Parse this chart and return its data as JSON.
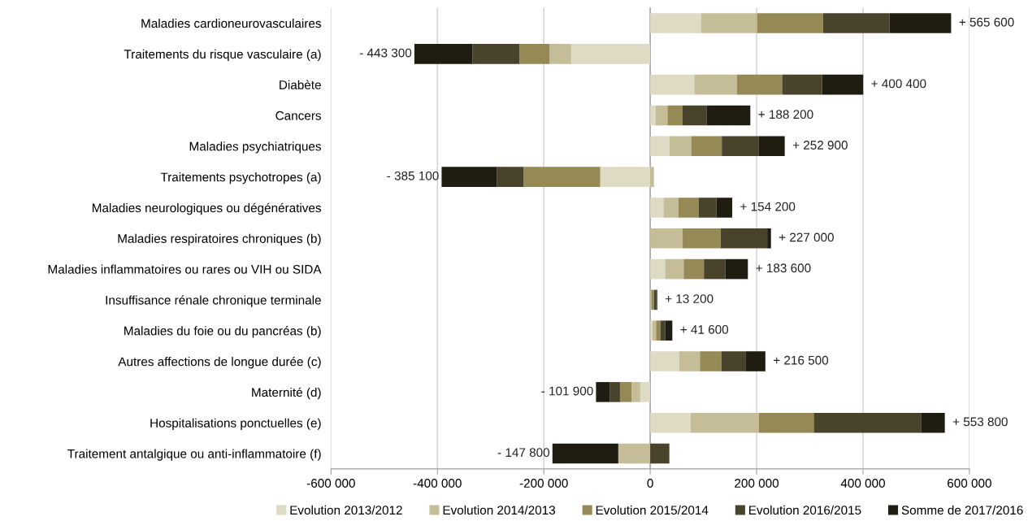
{
  "chart_data": {
    "type": "bar",
    "orientation": "horizontal",
    "stacked": true,
    "categories": [
      "Maladies cardioneurovasculaires",
      "Traitements du risque vasculaire (a)",
      "Diabète",
      "Cancers",
      "Maladies psychiatriques",
      "Traitements psychotropes (a)",
      "Maladies neurologiques ou dégénératives",
      "Maladies respiratoires chroniques (b)",
      "Maladies inflammatoires ou rares ou VIH ou SIDA",
      "Insuffisance rénale chronique terminale",
      "Maladies du foie ou du pancréas (b)",
      "Autres affections de longue durée (c)",
      "Maternité (d)",
      "Hospitalisations ponctuelles (e)",
      "Traitement antalgique ou anti-inflammatoire (f)"
    ],
    "series": [
      {
        "name": "Evolution 2013/2012",
        "color": "#dedac3",
        "values": [
          96000,
          -148600,
          83000,
          10000,
          36500,
          -94000,
          25000,
          0,
          28000,
          null,
          4000,
          54500,
          -18700,
          76000,
          0
        ]
      },
      {
        "name": "Evolution 2014/2013",
        "color": "#c5bd97",
        "values": [
          105000,
          -40500,
          80000,
          22500,
          40500,
          7000,
          28000,
          61000,
          35000,
          2000,
          7000,
          39000,
          -16300,
          128500,
          -60000
        ]
      },
      {
        "name": "Evolution 2015/2014",
        "color": "#958a55",
        "values": [
          124000,
          -56800,
          85000,
          28000,
          57500,
          -144000,
          38000,
          71500,
          38000,
          5000,
          8000,
          40500,
          -21800,
          103000,
          0
        ]
      },
      {
        "name": "Evolution 2016/2015",
        "color": "#4a432c",
        "values": [
          125000,
          -88000,
          75000,
          46000,
          69000,
          -50000,
          33500,
          87500,
          40500,
          4200,
          9000,
          46000,
          -19500,
          201500,
          36000
        ]
      },
      {
        "name": "Somme de 2017/2016",
        "color": "#1f1d12",
        "values": [
          115600,
          -109400,
          77400,
          81700,
          49400,
          -104100,
          29700,
          7000,
          42100,
          2000,
          13600,
          36500,
          -25600,
          44800,
          -123800
        ]
      }
    ],
    "totals": [
      "+ 565 600",
      "- 443 300",
      "+ 400 400",
      "+ 188 200",
      "+ 252 900",
      "- 385 100",
      "+ 154 200",
      "+ 227 000",
      "+ 183 600",
      "+ 13 200",
      "+ 41 600",
      "+ 216 500",
      "- 101 900",
      "+ 553 800",
      "- 147 800"
    ],
    "xlim": [
      -600000,
      600000
    ],
    "xticks": [
      {
        "value": -600000,
        "label": "-600 000"
      },
      {
        "value": -400000,
        "label": "-400 000"
      },
      {
        "value": -200000,
        "label": "-200 000"
      },
      0,
      {
        "value": 200000,
        "label": "200 000"
      },
      {
        "value": 400000,
        "label": "400 000"
      },
      {
        "value": 600000,
        "label": "600 000"
      }
    ],
    "grid": "x",
    "legend": "bottom"
  }
}
